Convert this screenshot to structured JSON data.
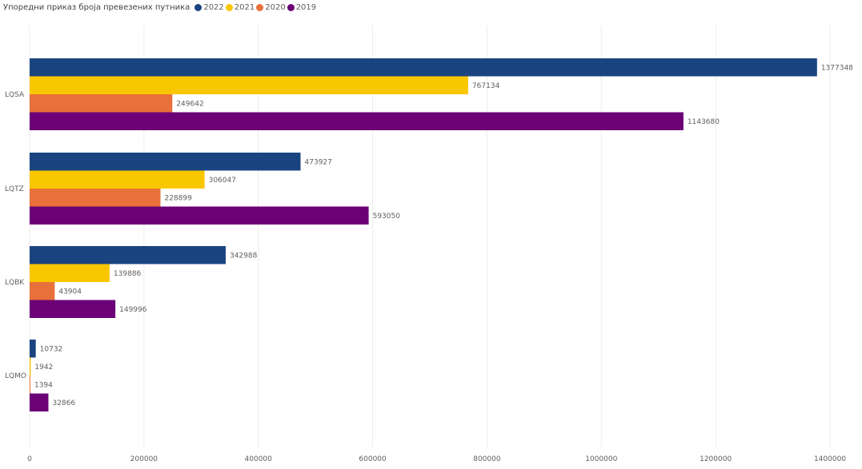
{
  "chart_data": {
    "type": "bar",
    "orientation": "horizontal",
    "title": "Упоредни приказ броја превезених путника",
    "categories": [
      "LQSA",
      "LQTZ",
      "LQBK",
      "LQMO"
    ],
    "series": [
      {
        "name": "2022",
        "color": "#1a4480",
        "values": [
          1377348,
          473927,
          342988,
          10732
        ]
      },
      {
        "name": "2021",
        "color": "#f9c700",
        "values": [
          767134,
          306047,
          139886,
          1942
        ]
      },
      {
        "name": "2020",
        "color": "#e8703a",
        "values": [
          249642,
          228899,
          43904,
          1394
        ]
      },
      {
        "name": "2019",
        "color": "#6b0077",
        "values": [
          1143680,
          593050,
          149996,
          32866
        ]
      }
    ],
    "xlim": [
      0,
      1400000
    ],
    "xticks": [
      0,
      200000,
      400000,
      600000,
      800000,
      1000000,
      1200000,
      1400000
    ],
    "grid": true,
    "legend_position": "top-left",
    "data_labels": true
  }
}
